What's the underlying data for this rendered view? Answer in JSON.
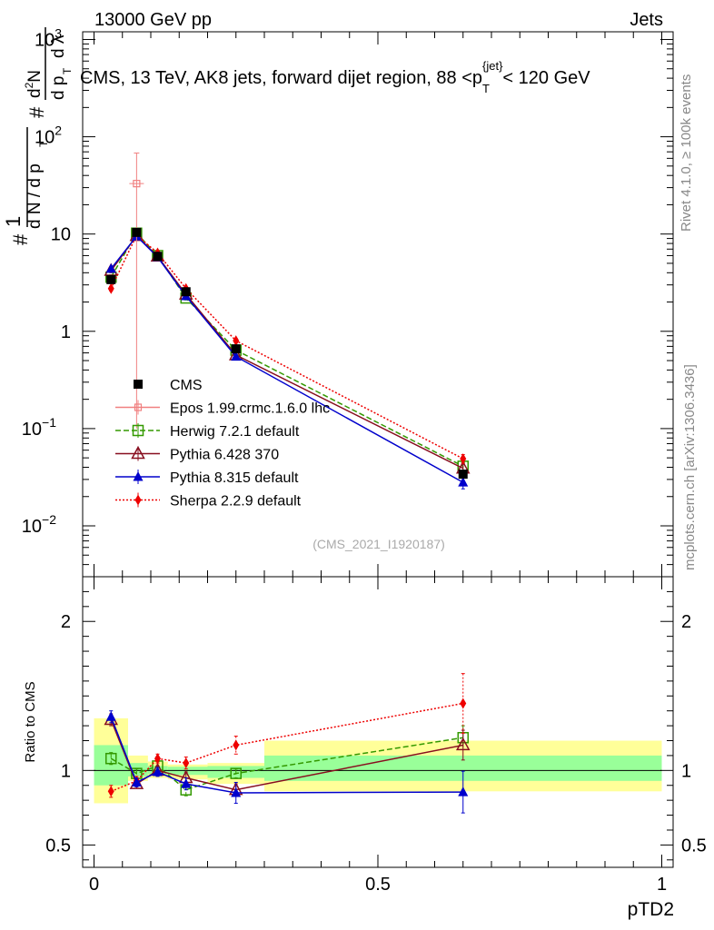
{
  "header": {
    "left": "13000 GeV pp",
    "right": "Jets"
  },
  "title_parts": {
    "main": "CMS, 13 TeV, AK8 jets, forward dijet region, 88 <",
    "p": "p",
    "sub": "T",
    "sup": "{jet}",
    "tail": "< 120 GeV"
  },
  "side": {
    "rivet": "Rivet 4.1.0, ≥ 100k events",
    "mcplots": "mcplots.cern.ch [arXiv:1306.3436]"
  },
  "watermark": "(CMS_2021_I1920187)",
  "ylabel_top": {
    "hash": "#",
    "one": "1",
    "dn": "d N / d p",
    "dn_sub": "T",
    "hash2": "#",
    "d2n": "d",
    "d2n_sup": "2",
    "d2n_n": "N",
    "dpt": "d p",
    "dpt_sub": "T",
    "dl": "d λ"
  },
  "ylabel_bottom": "Ratio to CMS",
  "xlabel": "pTD2",
  "chart_data": {
    "type": "line",
    "x_ticks": [
      {
        "v": 0,
        "label": "0"
      },
      {
        "v": 0.5,
        "label": "0.5"
      },
      {
        "v": 1,
        "label": "1"
      }
    ],
    "xlim": [
      -0.02,
      1.02
    ],
    "main": {
      "yscale": "log",
      "ylim": [
        0.003,
        1200
      ],
      "y_ticks": [
        {
          "v": 0.01,
          "base": "10",
          "exp": "−2"
        },
        {
          "v": 0.1,
          "base": "10",
          "exp": "−1"
        },
        {
          "v": 1,
          "base": "1",
          "exp": ""
        },
        {
          "v": 10,
          "base": "10",
          "exp": ""
        },
        {
          "v": 100,
          "base": "10",
          "exp": "2"
        },
        {
          "v": 1000,
          "base": "10",
          "exp": "3"
        }
      ]
    },
    "ratio": {
      "ylim": [
        0.35,
        2.3
      ],
      "y_ticks": [
        {
          "v": 0.5,
          "label": "0.5"
        },
        {
          "v": 1,
          "label": "1"
        },
        {
          "v": 2,
          "label": "2"
        }
      ]
    },
    "bands": [
      {
        "x0": 0.0,
        "x1": 0.06,
        "y_lo": 0.78,
        "y_hi": 1.35,
        "g_lo": 0.9,
        "g_hi": 1.17
      },
      {
        "x0": 0.06,
        "x1": 0.095,
        "y_lo": 0.93,
        "y_hi": 1.1,
        "g_lo": 0.96,
        "g_hi": 1.05
      },
      {
        "x0": 0.095,
        "x1": 0.13,
        "y_lo": 0.95,
        "y_hi": 1.06,
        "g_lo": 0.975,
        "g_hi": 1.03
      },
      {
        "x0": 0.13,
        "x1": 0.2,
        "y_lo": 0.94,
        "y_hi": 1.04,
        "g_lo": 0.97,
        "g_hi": 1.025
      },
      {
        "x0": 0.2,
        "x1": 0.3,
        "y_lo": 0.91,
        "y_hi": 1.05,
        "g_lo": 0.95,
        "g_hi": 1.03
      },
      {
        "x0": 0.3,
        "x1": 1.0,
        "y_lo": 0.86,
        "y_hi": 1.2,
        "g_lo": 0.93,
        "g_hi": 1.1
      }
    ],
    "series": [
      {
        "name": "CMS",
        "color": "#000000",
        "marker": "square-filled",
        "dash": "none",
        "line": false,
        "x": [
          0.03,
          0.075,
          0.112,
          0.162,
          0.25,
          0.65
        ],
        "y": [
          3.4,
          10.4,
          5.9,
          2.55,
          0.66,
          0.034
        ],
        "err": [
          0.2,
          0.4,
          0.3,
          0.12,
          0.04,
          0.003
        ],
        "ratio": [
          1,
          1,
          1,
          1,
          1,
          1
        ]
      },
      {
        "name": "Epos 1.99.crmc.1.6.0 lhc",
        "color": "#f08080",
        "marker": "square-open-small",
        "dash": "none",
        "line": true,
        "x": [
          0.075
        ],
        "y": [
          33
        ],
        "err_lo": [
          32.9
        ],
        "err_hi": [
          35
        ],
        "ratio": []
      },
      {
        "name": "Herwig 7.2.1 default",
        "color": "#339900",
        "marker": "square-open",
        "dash": "6,3",
        "line": true,
        "x": [
          0.03,
          0.075,
          0.112,
          0.162,
          0.25,
          0.65
        ],
        "y": [
          3.6,
          10.2,
          6.0,
          2.2,
          0.64,
          0.041
        ],
        "err": [
          0.2,
          0.4,
          0.3,
          0.1,
          0.04,
          0.004
        ],
        "ratio": [
          1.08,
          0.98,
          1.03,
          0.87,
          0.98,
          1.22
        ],
        "ratio_err": [
          0.04,
          0.03,
          0.03,
          0.04,
          0.03,
          0.08
        ]
      },
      {
        "name": "Pythia 6.428 370",
        "color": "#880e1f",
        "marker": "triangle-open",
        "dash": "none",
        "line": true,
        "x": [
          0.03,
          0.075,
          0.112,
          0.162,
          0.25,
          0.65
        ],
        "y": [
          4.2,
          9.6,
          5.9,
          2.4,
          0.57,
          0.039
        ],
        "err": [
          0.2,
          0.4,
          0.3,
          0.1,
          0.03,
          0.004
        ],
        "ratio": [
          1.34,
          0.91,
          1.0,
          0.95,
          0.87,
          1.17
        ],
        "ratio_err": [
          0.04,
          0.03,
          0.03,
          0.04,
          0.04,
          0.1
        ]
      },
      {
        "name": "Pythia 8.315 default",
        "color": "#0000cc",
        "marker": "triangle-filled",
        "dash": "none",
        "line": true,
        "x": [
          0.03,
          0.075,
          0.112,
          0.162,
          0.25,
          0.65
        ],
        "y": [
          4.4,
          9.5,
          5.8,
          2.3,
          0.55,
          0.028
        ],
        "err": [
          0.2,
          0.4,
          0.3,
          0.1,
          0.03,
          0.004
        ],
        "ratio": [
          1.36,
          0.92,
          0.99,
          0.91,
          0.85,
          0.855
        ],
        "ratio_err": [
          0.04,
          0.03,
          0.03,
          0.04,
          0.07,
          0.14
        ]
      },
      {
        "name": "Sherpa 2.2.9 default",
        "color": "#ee0000",
        "marker": "diamond-filled",
        "dash": "2,2",
        "line": true,
        "x": [
          0.03,
          0.075,
          0.112,
          0.162,
          0.25,
          0.65
        ],
        "y": [
          2.75,
          9.7,
          6.4,
          2.75,
          0.8,
          0.049
        ],
        "err": [
          0.15,
          0.4,
          0.3,
          0.1,
          0.04,
          0.005
        ],
        "ratio": [
          0.86,
          0.93,
          1.08,
          1.05,
          1.17,
          1.45
        ],
        "ratio_err": [
          0.04,
          0.03,
          0.03,
          0.04,
          0.06,
          0.2
        ]
      }
    ]
  }
}
